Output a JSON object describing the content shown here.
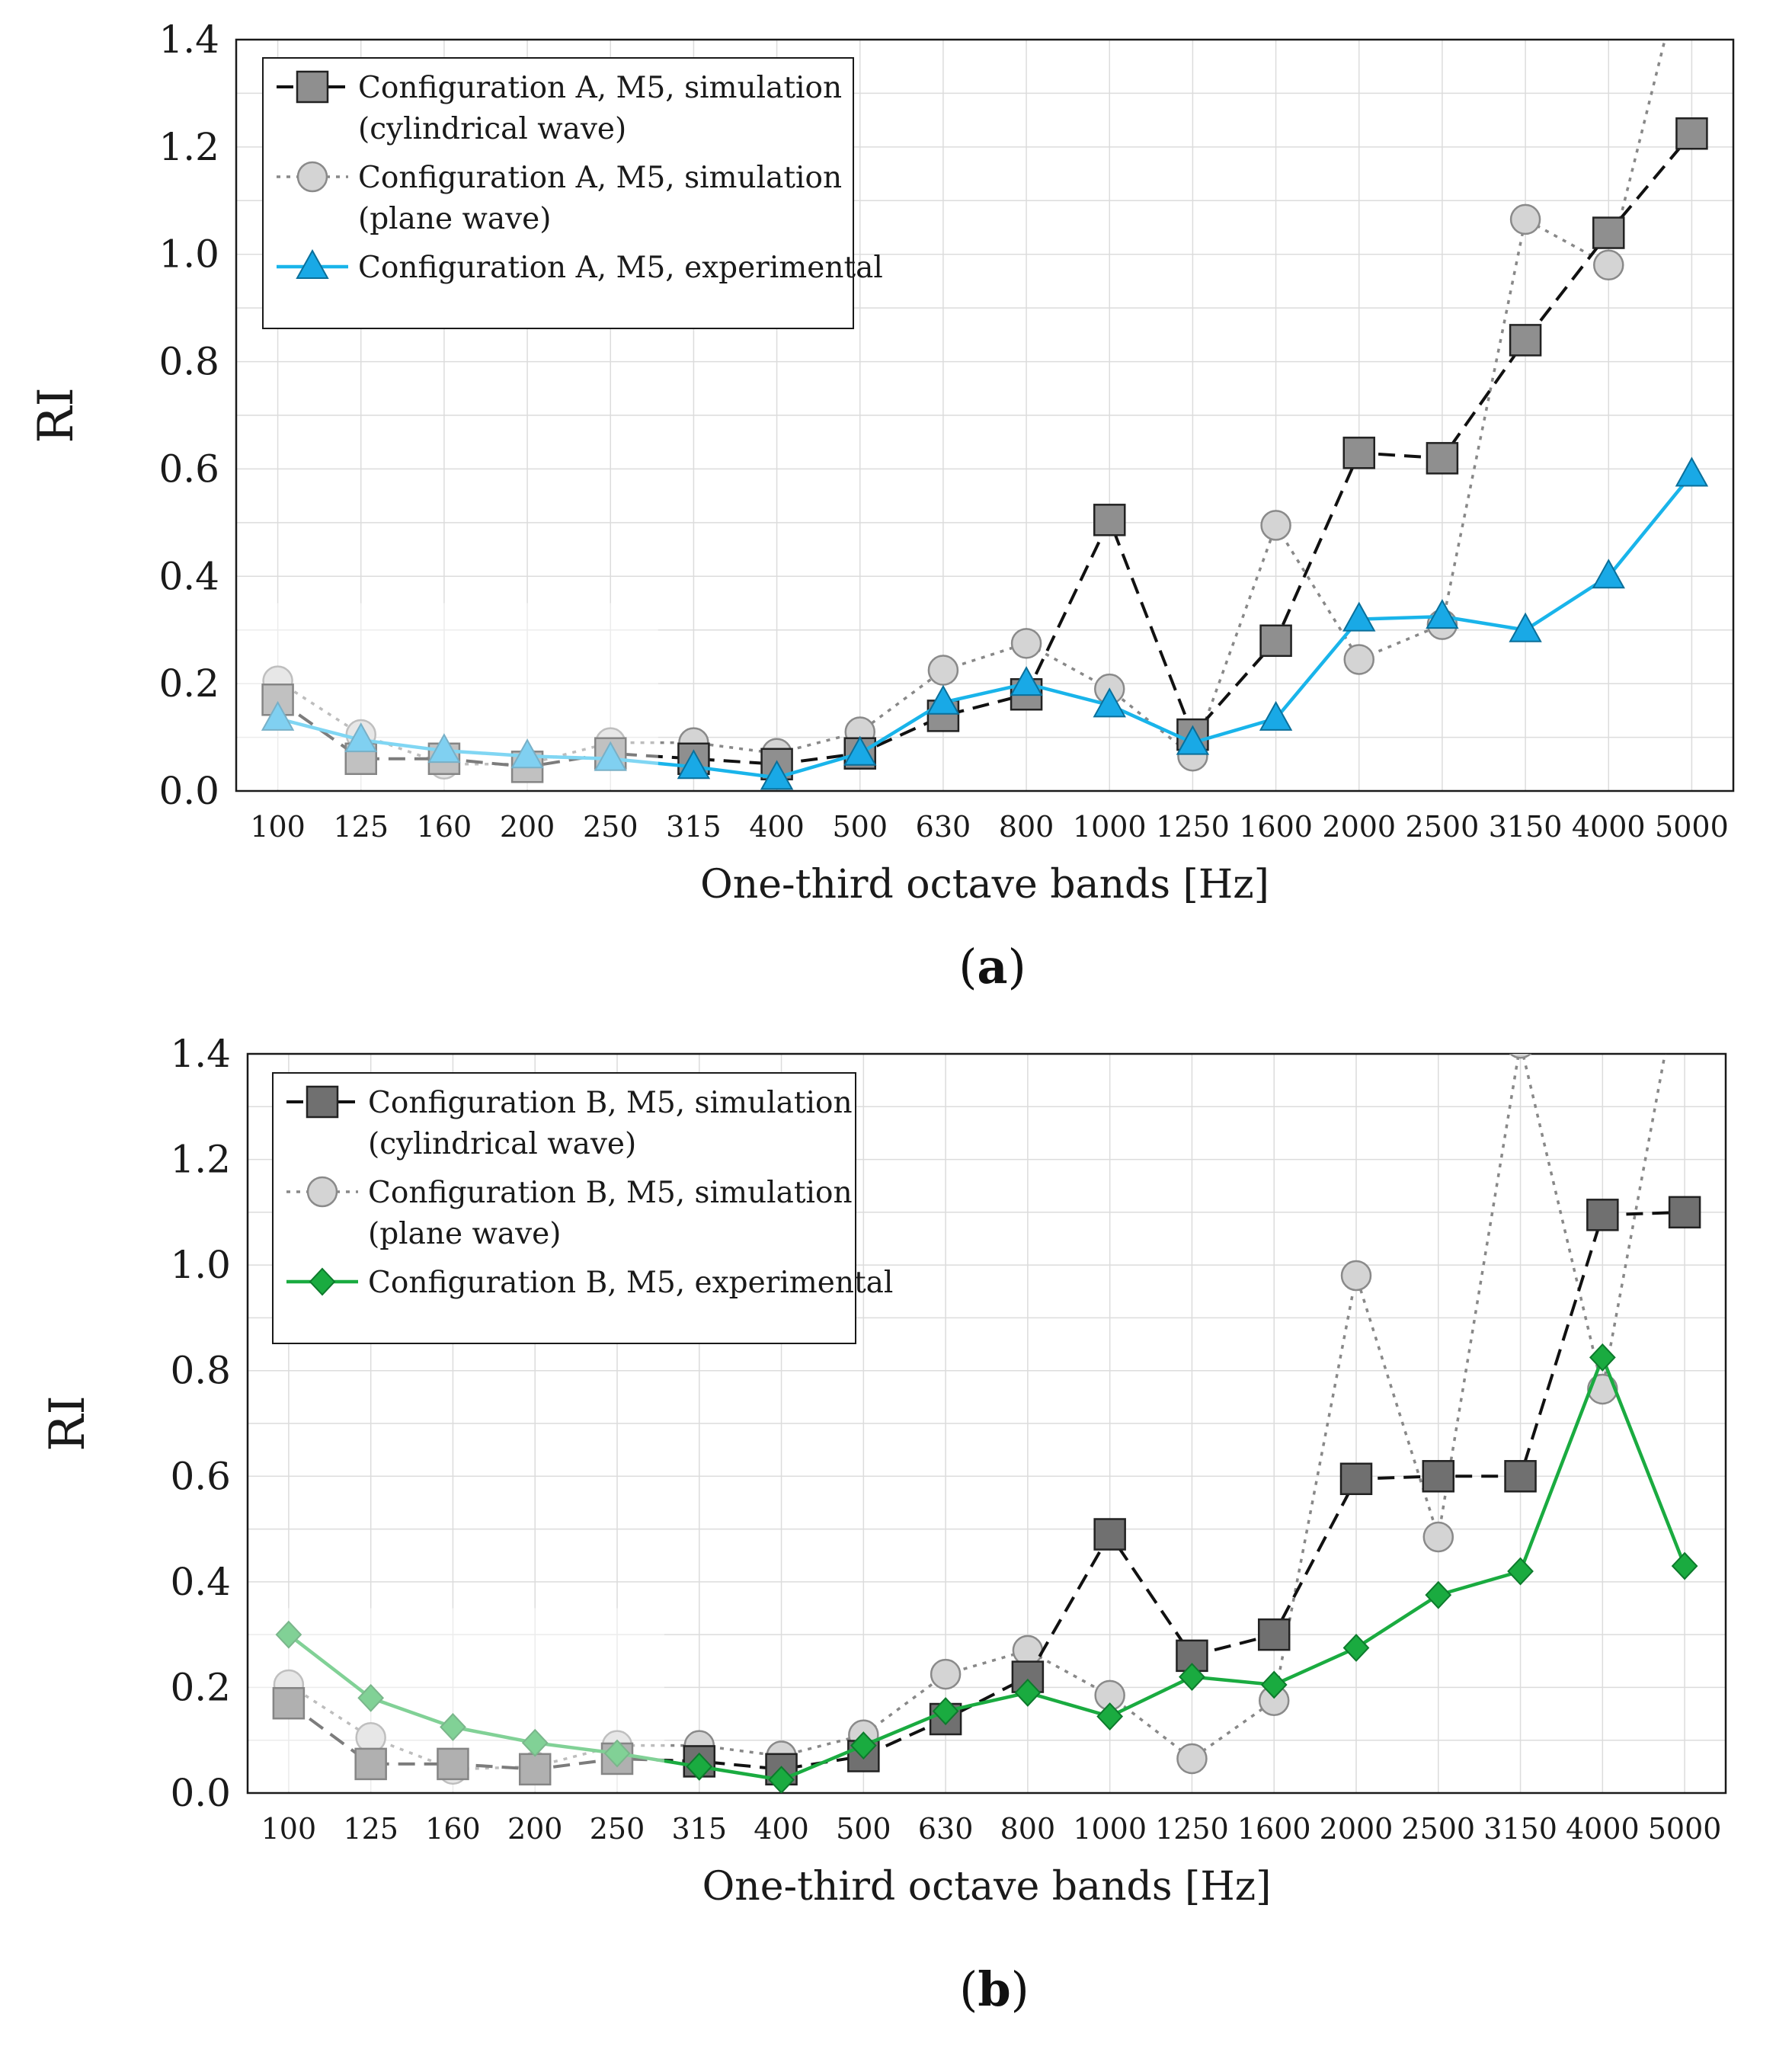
{
  "chart_data": [
    {
      "type": "line",
      "panel_label": "a",
      "xlabel": "One-third octave bands [Hz]",
      "ylabel": "RI",
      "ylim": [
        0.0,
        1.4
      ],
      "yticks": [
        "0.0",
        "0.2",
        "0.4",
        "0.6",
        "0.8",
        "1.0",
        "1.2",
        "1.4"
      ],
      "grid": true,
      "legend_position": "top-left",
      "categories": [
        "100",
        "125",
        "160",
        "200",
        "250",
        "315",
        "400",
        "500",
        "630",
        "800",
        "1000",
        "1250",
        "1600",
        "2000",
        "2500",
        "3150",
        "4000",
        "5000"
      ],
      "series": [
        {
          "name": "Configuration A, M5, simulation",
          "name_line2": "(cylindrical wave)",
          "style": "dashed",
          "marker": "square",
          "color": "#111111",
          "fill": "#8f8f8f",
          "values": [
            0.17,
            0.06,
            0.06,
            0.045,
            0.07,
            0.06,
            0.05,
            0.07,
            0.14,
            0.18,
            0.505,
            0.105,
            0.28,
            0.63,
            0.62,
            0.84,
            1.04,
            1.225
          ]
        },
        {
          "name": "Configuration A, M5, simulation",
          "name_line2": "(plane wave)",
          "style": "dotted",
          "marker": "circle",
          "color": "#888888",
          "fill": "#d4d4d4",
          "values": [
            0.205,
            0.105,
            0.05,
            0.05,
            0.09,
            0.09,
            0.07,
            0.11,
            0.225,
            0.275,
            0.19,
            0.065,
            0.495,
            0.245,
            0.31,
            1.065,
            0.98,
            1.6
          ]
        },
        {
          "name": "Configuration A, M5, experimental",
          "name_line2": "",
          "style": "solid",
          "marker": "triangle",
          "color": "#19b4ea",
          "fill": "#19a9e6",
          "values": [
            0.135,
            0.095,
            0.075,
            0.065,
            0.06,
            0.045,
            0.025,
            0.07,
            0.165,
            0.2,
            0.16,
            0.09,
            0.135,
            0.32,
            0.325,
            0.3,
            0.4,
            0.59
          ]
        }
      ]
    },
    {
      "type": "line",
      "panel_label": "b",
      "xlabel": "One-third octave bands [Hz]",
      "ylabel": "RI",
      "ylim": [
        0.0,
        1.4
      ],
      "yticks": [
        "0.0",
        "0.2",
        "0.4",
        "0.6",
        "0.8",
        "1.0",
        "1.2",
        "1.4"
      ],
      "grid": true,
      "legend_position": "top-left",
      "categories": [
        "100",
        "125",
        "160",
        "200",
        "250",
        "315",
        "400",
        "500",
        "630",
        "800",
        "1000",
        "1250",
        "1600",
        "2000",
        "2500",
        "3150",
        "4000",
        "5000"
      ],
      "series": [
        {
          "name": "Configuration B, M5, simulation",
          "name_line2": "(cylindrical wave)",
          "style": "dashed",
          "marker": "square",
          "color": "#111111",
          "fill": "#707070",
          "values": [
            0.17,
            0.055,
            0.055,
            0.045,
            0.065,
            0.06,
            0.045,
            0.07,
            0.14,
            0.22,
            0.49,
            0.26,
            0.3,
            0.595,
            0.6,
            0.6,
            1.095,
            1.1
          ]
        },
        {
          "name": "Configuration B, M5, simulation",
          "name_line2": "(plane wave)",
          "style": "dotted",
          "marker": "circle",
          "color": "#888888",
          "fill": "#d4d4d4",
          "values": [
            0.205,
            0.105,
            0.045,
            0.05,
            0.09,
            0.09,
            0.07,
            0.11,
            0.225,
            0.27,
            0.185,
            0.065,
            0.175,
            0.98,
            0.485,
            1.42,
            0.765,
            1.6
          ]
        },
        {
          "name": "Configuration B, M5, experimental",
          "name_line2": "",
          "style": "solid",
          "marker": "diamond",
          "color": "#1aab40",
          "fill": "#1aab40",
          "values": [
            0.3,
            0.18,
            0.125,
            0.095,
            0.075,
            0.05,
            0.025,
            0.09,
            0.155,
            0.19,
            0.145,
            0.22,
            0.205,
            0.275,
            0.375,
            0.42,
            0.825,
            0.43
          ]
        }
      ]
    }
  ]
}
